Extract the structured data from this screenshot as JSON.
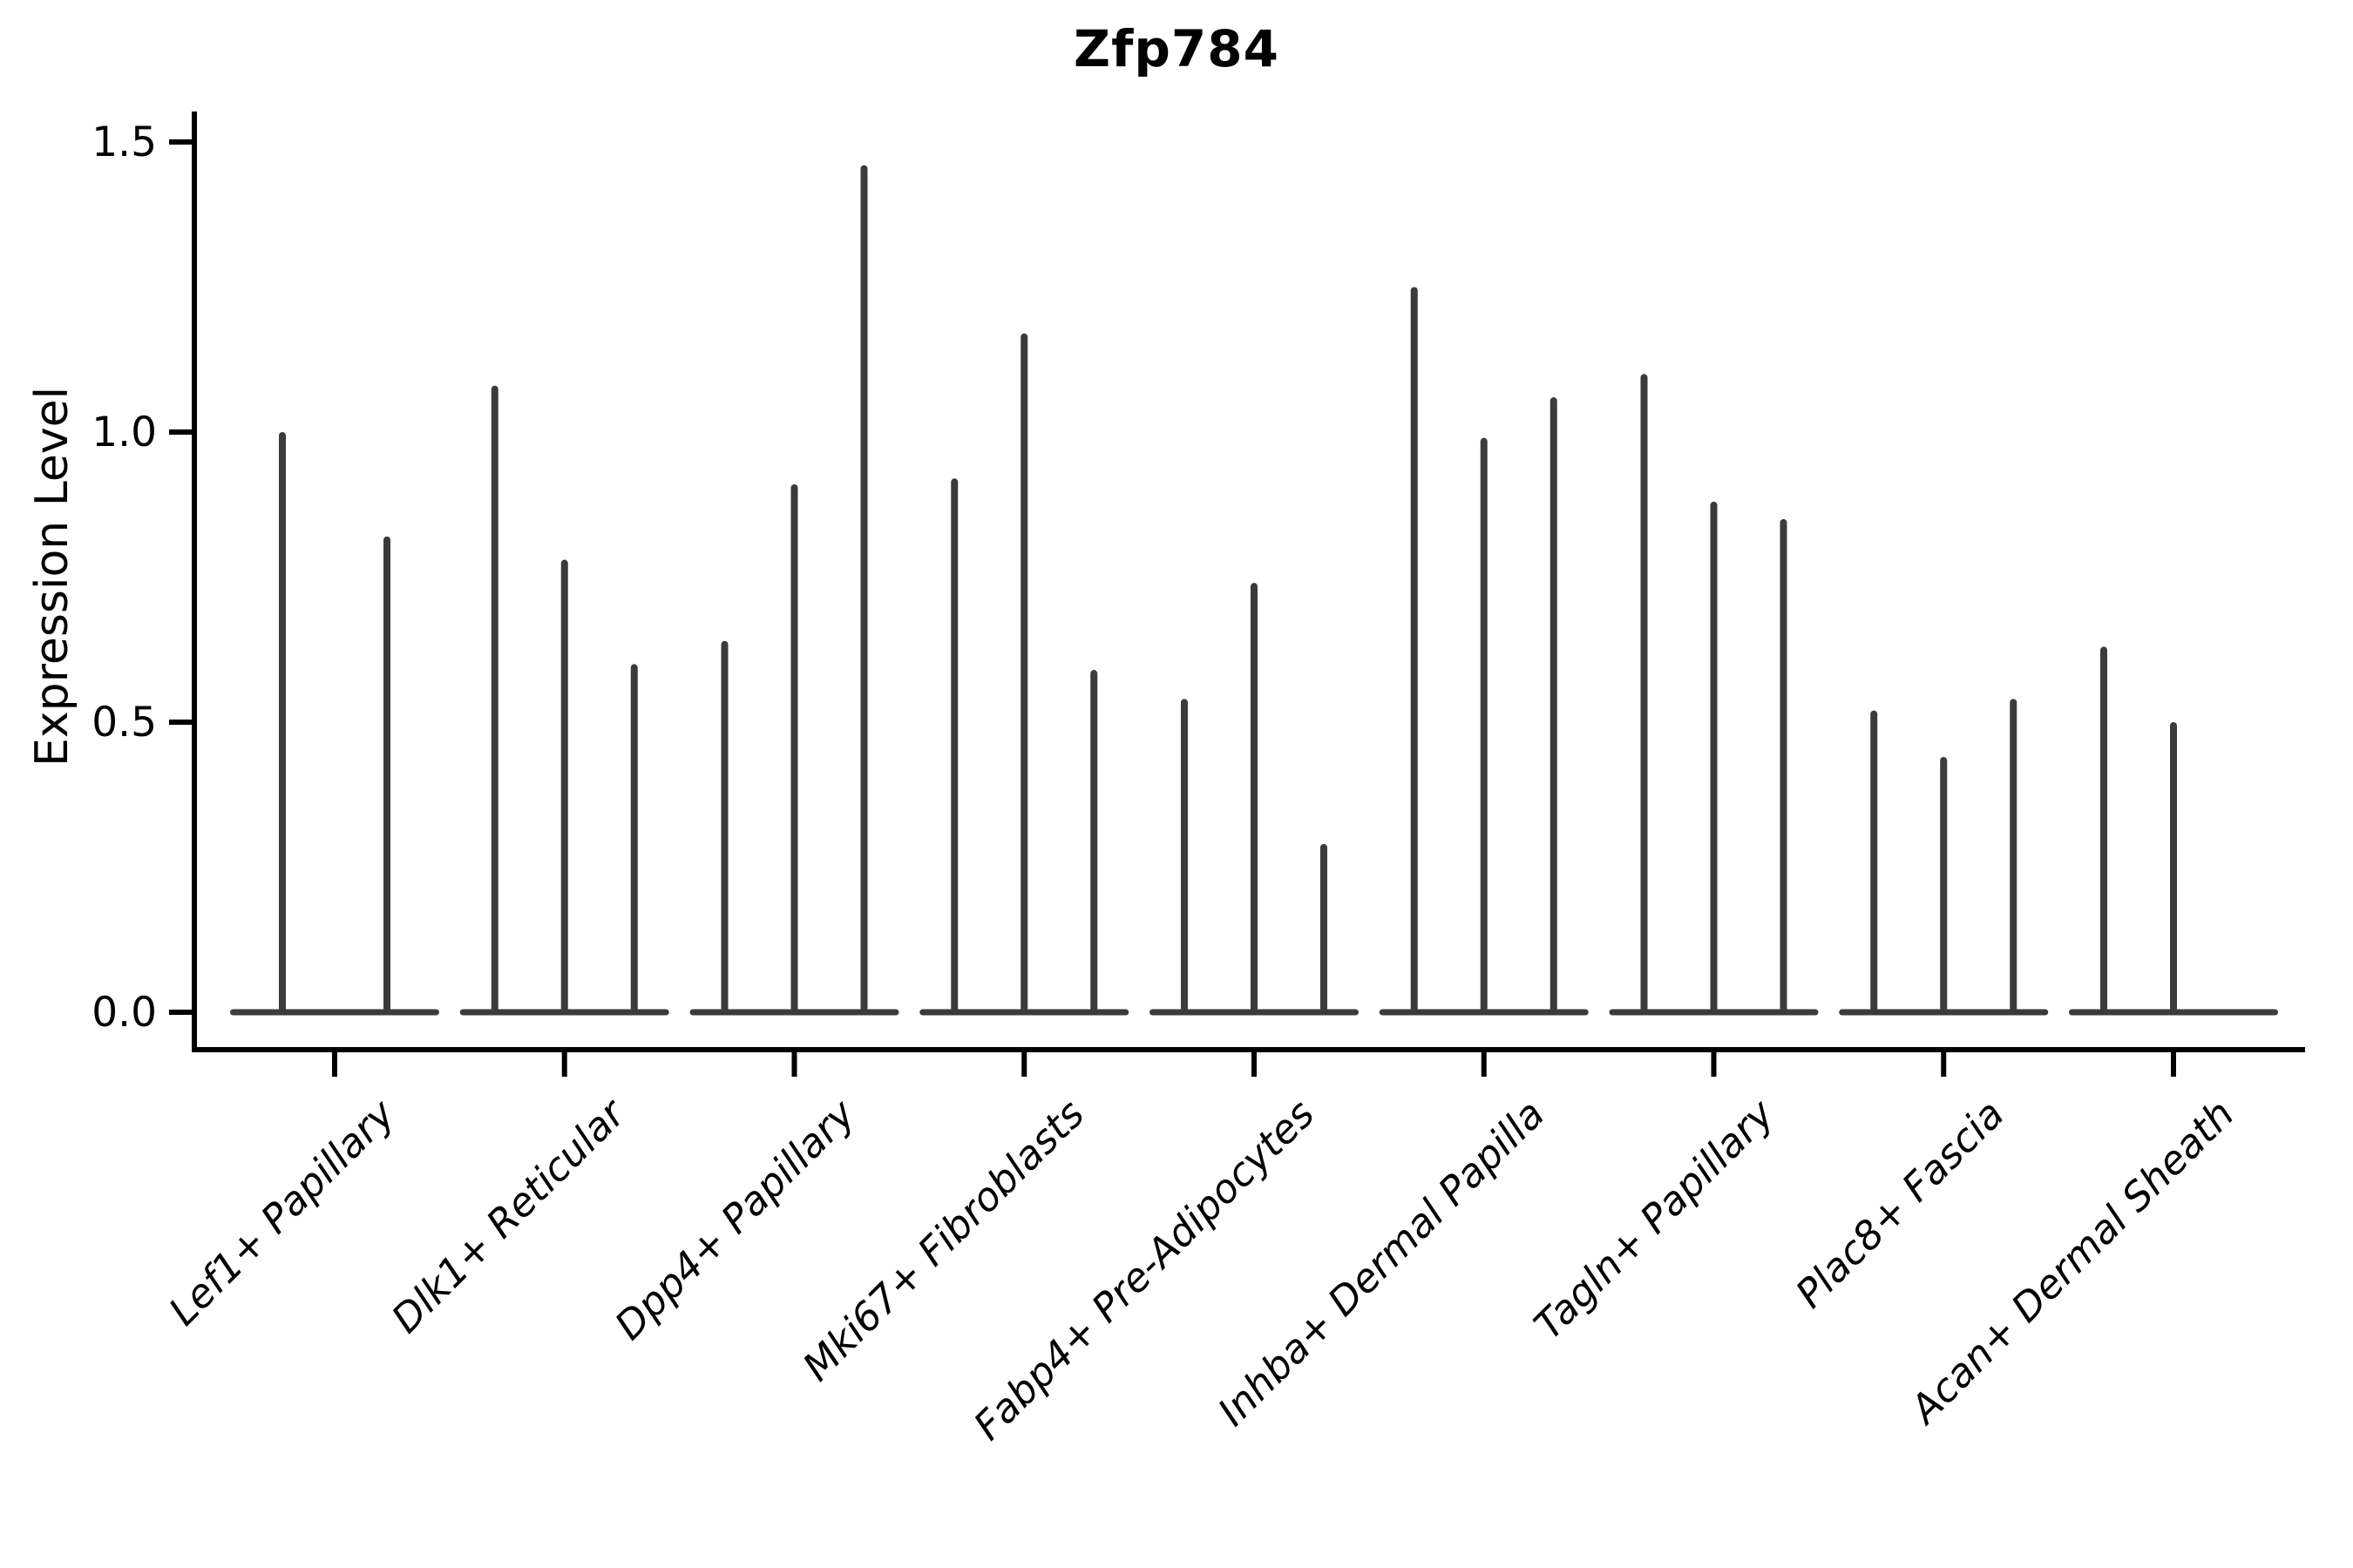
{
  "chart_data": {
    "type": "violin",
    "title": "Zfp784",
    "ylabel": "Expression Level",
    "xlabel": "",
    "ylim": [
      0,
      1.5
    ],
    "yticks": [
      0.0,
      0.5,
      1.0,
      1.5
    ],
    "ytick_labels": [
      "0.0",
      "0.5",
      "1.0",
      "1.5"
    ],
    "categories": [
      "Lef1+ Papillary",
      "Dlk1+ Reticular",
      "Dpp4+ Papillary",
      "Mki67+ Fibroblasts",
      "Fabp4+ Pre-Adipocytes",
      "Inhba+ Dermal Papilla",
      "Tagln+ Papillary",
      "Plac8+ Fascia",
      "Acan+ Dermal Sheath"
    ],
    "groups": [
      {
        "category": "Lef1+ Papillary",
        "violin_maxima": [
          1.0,
          0.82
        ]
      },
      {
        "category": "Dlk1+ Reticular",
        "violin_maxima": [
          1.08,
          0.78,
          0.6
        ]
      },
      {
        "category": "Dpp4+ Papillary",
        "violin_maxima": [
          0.64,
          0.91,
          1.46
        ]
      },
      {
        "category": "Mki67+ Fibroblasts",
        "violin_maxima": [
          0.92,
          1.17,
          0.59
        ]
      },
      {
        "category": "Fabp4+ Pre-Adipocytes",
        "violin_maxima": [
          0.54,
          0.74,
          0.29
        ]
      },
      {
        "category": "Inhba+ Dermal Papilla",
        "violin_maxima": [
          1.25,
          0.99,
          1.06
        ]
      },
      {
        "category": "Tagln+ Papillary",
        "violin_maxima": [
          1.1,
          0.88,
          0.85
        ]
      },
      {
        "category": "Plac8+ Fascia",
        "violin_maxima": [
          0.52,
          0.44,
          0.54
        ]
      },
      {
        "category": "Acan+ Dermal Sheath",
        "violin_maxima": [
          0.63,
          0.5,
          0.0
        ]
      }
    ],
    "legend": "none",
    "grid": false,
    "violin_color": "#3b3b3b",
    "axis_color": "#000000",
    "background": "#ffffff"
  }
}
